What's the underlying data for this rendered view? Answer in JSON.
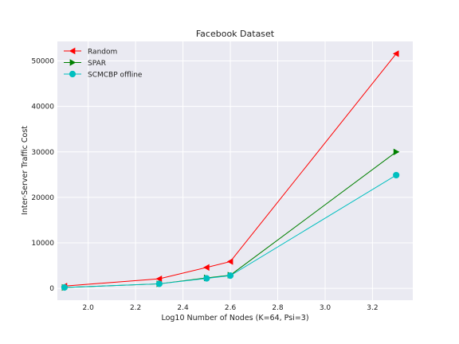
{
  "chart_data": {
    "type": "line",
    "title": "Facebook Dataset",
    "xlabel": "Log10 Number of Nodes (K=64, Psi=3)",
    "ylabel": "Inter-Server Traffic Cost",
    "xlim": [
      1.87,
      3.37
    ],
    "ylim": [
      -2600,
      54300
    ],
    "xticks": [
      2.0,
      2.2,
      2.4,
      2.6,
      2.8,
      3.0,
      3.2
    ],
    "xtick_labels": [
      "2.0",
      "2.2",
      "2.4",
      "2.6",
      "2.8",
      "3.0",
      "3.2"
    ],
    "yticks": [
      0,
      10000,
      20000,
      30000,
      40000,
      50000
    ],
    "ytick_labels": [
      "0",
      "10000",
      "20000",
      "30000",
      "40000",
      "50000"
    ],
    "grid": true,
    "legend_position": "top-left",
    "background": "#eaeaf2",
    "series": [
      {
        "name": "Random",
        "color": "#ff0000",
        "marker": "triangle-left",
        "x": [
          1.9,
          2.3,
          2.5,
          2.6,
          3.3
        ],
        "y": [
          500,
          2100,
          4600,
          5900,
          51600
        ]
      },
      {
        "name": "SPAR",
        "color": "#008000",
        "marker": "triangle-right",
        "x": [
          1.9,
          2.3,
          2.5,
          2.6,
          3.3
        ],
        "y": [
          200,
          1000,
          2300,
          2900,
          30000
        ]
      },
      {
        "name": "SCMCBP offline",
        "color": "#00bfbf",
        "marker": "circle",
        "x": [
          1.9,
          2.3,
          2.5,
          2.6,
          3.3
        ],
        "y": [
          200,
          1000,
          2200,
          2800,
          24900
        ]
      }
    ]
  }
}
